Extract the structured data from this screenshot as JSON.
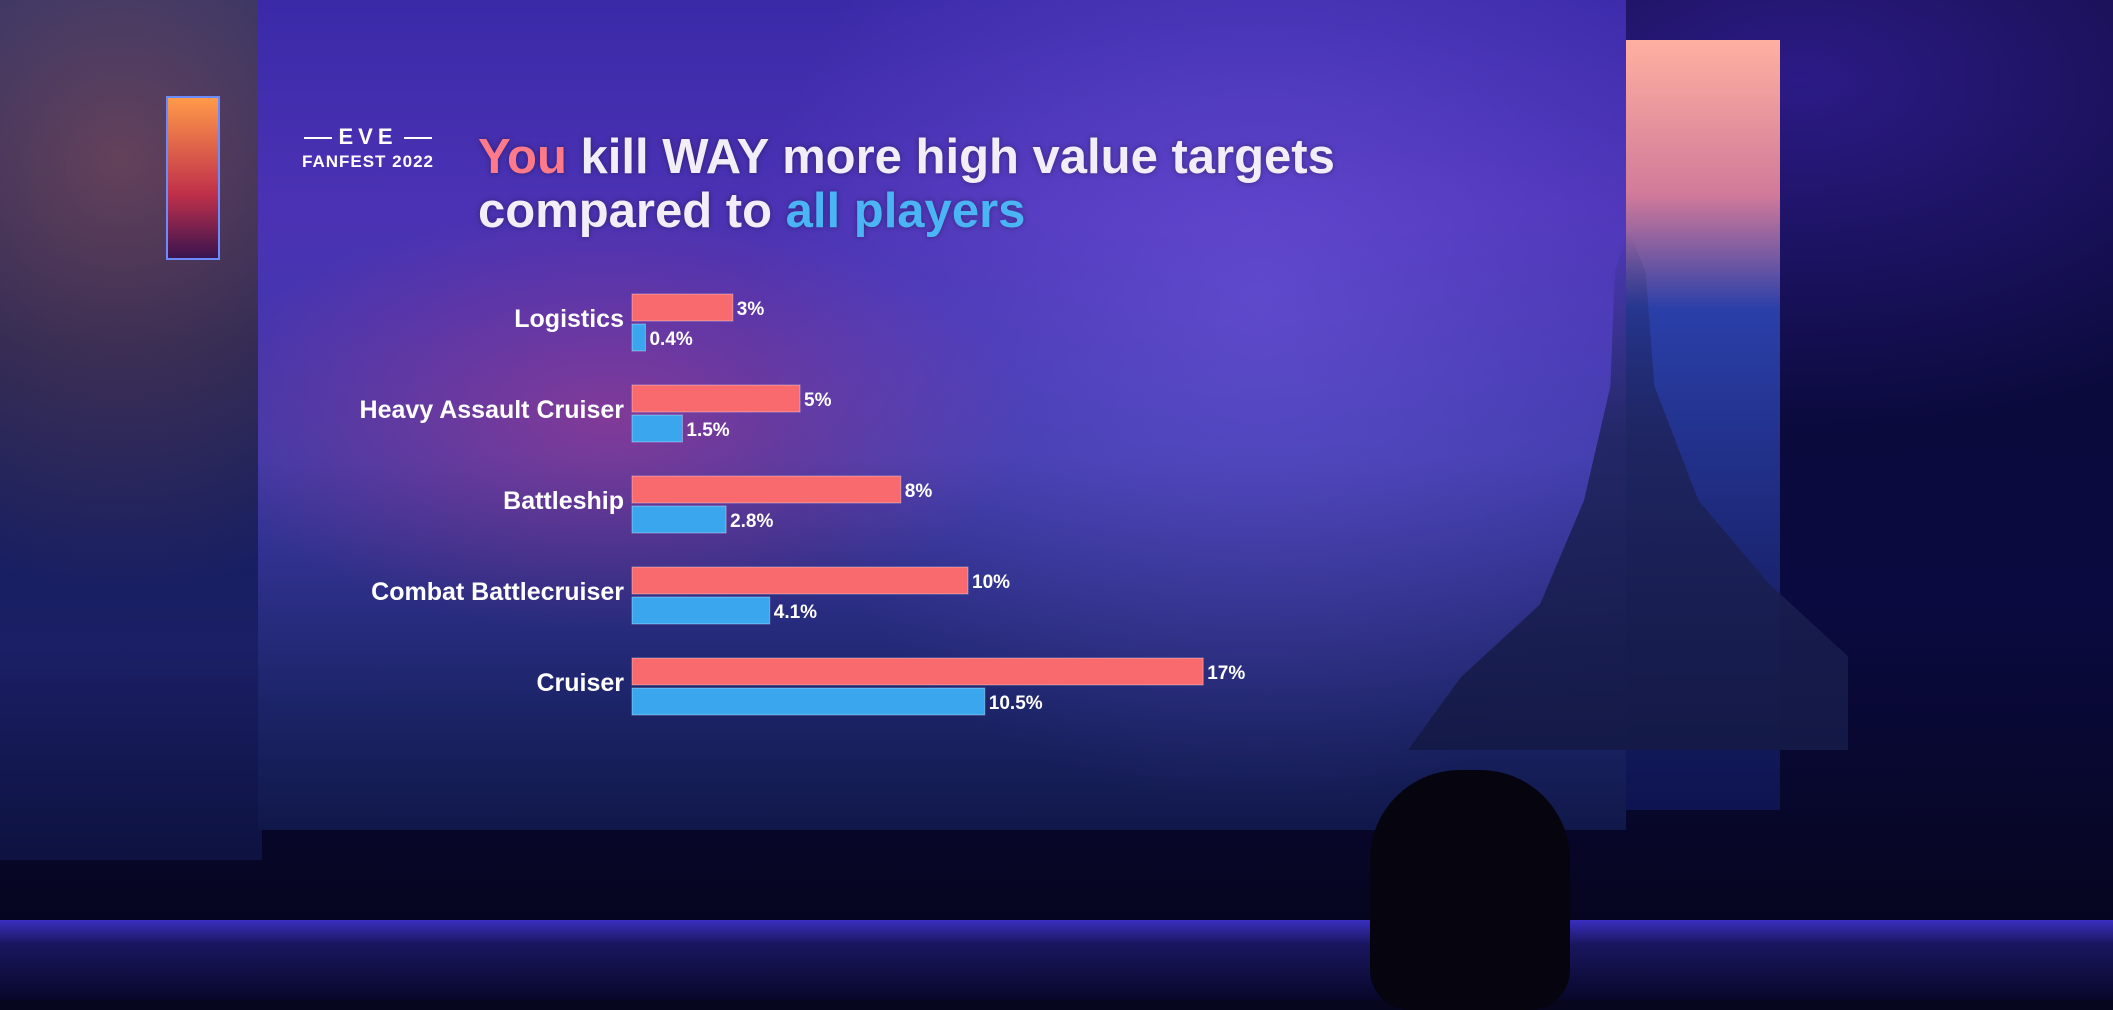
{
  "slide": {
    "logo_top": "EVE",
    "logo_bottom": "FANFEST 2022",
    "title_you": "You",
    "title_mid": " kill WAY more high value targets compared to ",
    "title_all": "all players"
  },
  "colors": {
    "you_bar": "#f86a6e",
    "all_bar": "#3aa6ee",
    "highlight_you": "#ff7a88",
    "highlight_all": "#4ab4f5"
  },
  "chart_data": {
    "type": "bar",
    "orientation": "horizontal",
    "categories": [
      "Logistics",
      "Heavy Assault Cruiser",
      "Battleship",
      "Combat Battlecruiser",
      "Cruiser"
    ],
    "series": [
      {
        "values": [
          3,
          5,
          8,
          10,
          17
        ],
        "labels": [
          "3%",
          "5%",
          "8%",
          "10%",
          "17%"
        ],
        "color": "#f86a6e"
      },
      {
        "values": [
          0.4,
          1.5,
          2.8,
          4.1,
          10.5
        ],
        "labels": [
          "0.4%",
          "1.5%",
          "2.8%",
          "4.1%",
          "10.5%"
        ],
        "color": "#3aa6ee"
      }
    ],
    "grid": false
  }
}
